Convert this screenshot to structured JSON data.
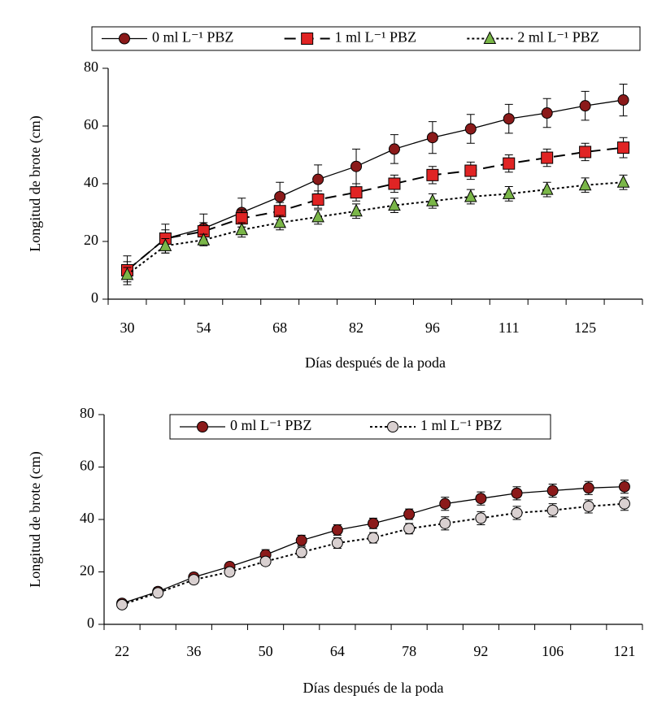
{
  "chart_data": [
    {
      "type": "line",
      "ylabel": "Longitud de brote (cm)",
      "xlabel": "Días después de la poda",
      "categories": [
        "30",
        null,
        "54",
        null,
        "68",
        null,
        "82",
        null,
        "96",
        null,
        "111",
        null,
        "125",
        null
      ],
      "ylim": [
        0,
        80
      ],
      "yticks": [
        0,
        20,
        40,
        60,
        80
      ],
      "legend": "top",
      "line_color": "#000000",
      "series": [
        {
          "name": "0 ml L⁻¹ PBZ",
          "color": "#8b1a1a",
          "marker": "circle",
          "line_style": "solid",
          "values": [
            10,
            21,
            24.5,
            30,
            35.5,
            41.5,
            46,
            52,
            56,
            59,
            62.5,
            64.5,
            67,
            69
          ],
          "errors": [
            5,
            5,
            5,
            5,
            5,
            5,
            6,
            5,
            5.5,
            5,
            5,
            5,
            5,
            5.5
          ]
        },
        {
          "name": "1 ml L⁻¹ PBZ",
          "color": "#e02424",
          "marker": "square",
          "line_style": "dashed",
          "values": [
            10,
            21,
            23.5,
            28,
            30.5,
            34.5,
            37,
            40,
            43,
            44.5,
            47,
            49,
            51,
            52.5
          ],
          "errors": [
            3,
            3,
            3,
            3,
            3,
            3,
            3,
            3,
            3,
            3,
            3,
            3,
            3,
            3.5
          ]
        },
        {
          "name": "2 ml L⁻¹ PBZ",
          "color": "#7ab648",
          "marker": "triangle",
          "line_style": "dotted",
          "values": [
            8.5,
            18.5,
            20.5,
            24,
            26.5,
            28.5,
            30.5,
            32.5,
            34,
            35.5,
            36.5,
            38,
            39.5,
            40.5
          ],
          "errors": [
            2.5,
            2.5,
            2,
            2.5,
            2.5,
            2.5,
            2.5,
            2.5,
            2.5,
            2.5,
            2.5,
            2.5,
            2.5,
            2.5
          ]
        }
      ]
    },
    {
      "type": "line",
      "ylabel": "Longitud de brote (cm)",
      "xlabel": "Días después de la poda",
      "categories": [
        "22",
        null,
        "36",
        null,
        "50",
        null,
        "64",
        null,
        "78",
        null,
        "92",
        null,
        "106",
        null,
        "121"
      ],
      "ylim": [
        0,
        80
      ],
      "yticks": [
        0,
        20,
        40,
        60,
        80
      ],
      "legend": "upper center",
      "line_color": "#000000",
      "series": [
        {
          "name": "0 ml L⁻¹ PBZ",
          "color": "#8b1a1a",
          "marker": "circle",
          "line_style": "solid",
          "values": [
            8,
            12.5,
            18,
            22,
            26.5,
            32,
            36,
            38.5,
            42,
            46,
            48,
            50,
            51,
            52,
            52.5
          ],
          "errors": [
            1,
            1.5,
            1.5,
            1.5,
            2,
            2,
            2,
            2,
            2,
            2.5,
            2.5,
            2.5,
            2.5,
            2.5,
            2.5
          ]
        },
        {
          "name": "1 ml L⁻¹ PBZ",
          "color": "#d9d0d0",
          "marker": "circle",
          "line_style": "dotted",
          "values": [
            7.5,
            12,
            17,
            20,
            24,
            27.5,
            31,
            33,
            36.5,
            38.5,
            40.5,
            42.5,
            43.5,
            45,
            46
          ],
          "errors": [
            1,
            1.5,
            1.5,
            1.5,
            1.5,
            2,
            2,
            2,
            2,
            2.5,
            2.5,
            2.5,
            2.5,
            2.5,
            2.5
          ]
        }
      ]
    }
  ]
}
